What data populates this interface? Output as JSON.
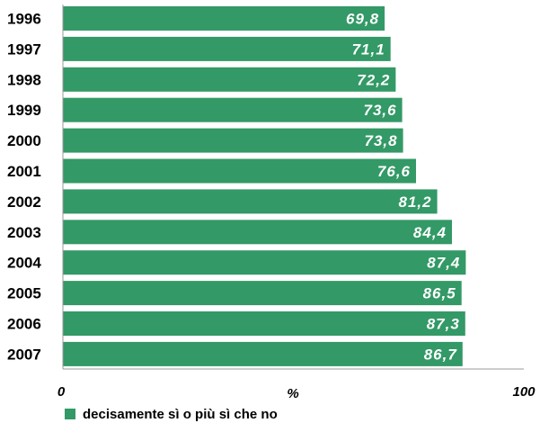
{
  "chart_data": {
    "type": "bar",
    "orientation": "horizontal",
    "categories": [
      "1996",
      "1997",
      "1998",
      "1999",
      "2000",
      "2001",
      "2002",
      "2003",
      "2004",
      "2005",
      "2006",
      "2007"
    ],
    "values": [
      69.8,
      71.1,
      72.2,
      73.6,
      73.8,
      76.6,
      81.2,
      84.4,
      87.4,
      86.5,
      87.3,
      86.7
    ],
    "value_labels": [
      "69,8",
      "71,1",
      "72,2",
      "73,6",
      "73,8",
      "76,6",
      "81,2",
      "84,4",
      "87,4",
      "86,5",
      "87,3",
      "86,7"
    ],
    "xlim": [
      0,
      100
    ],
    "x_tick_labels": [
      "0",
      "100"
    ],
    "xlabel": "%",
    "grid": false,
    "legend": {
      "position": "bottom-left",
      "entries": [
        {
          "label": "decisamente sì o più sì che no",
          "color": "#339966"
        }
      ]
    },
    "bar_color": "#339966"
  }
}
